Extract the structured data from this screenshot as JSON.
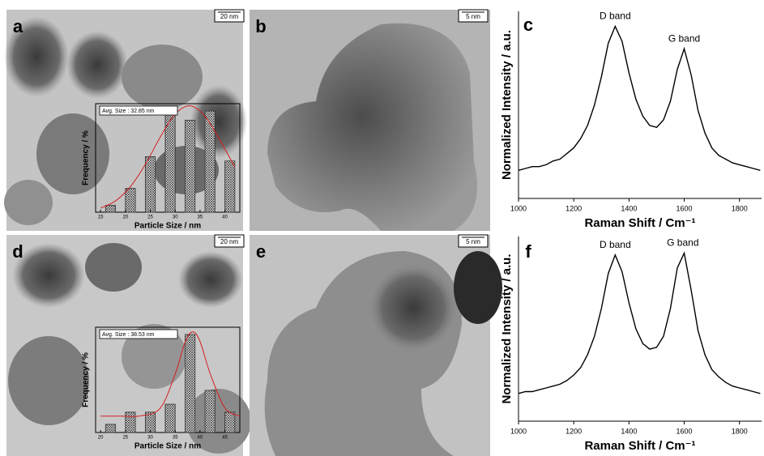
{
  "panels": [
    {
      "label": "a",
      "scale_bar": "20 nm"
    },
    {
      "label": "b",
      "scale_bar": "5 nm"
    },
    {
      "label": "c"
    },
    {
      "label": "d",
      "scale_bar": "20 nm"
    },
    {
      "label": "e",
      "scale_bar": "5 nm"
    },
    {
      "label": "f"
    }
  ],
  "chart_data": [
    {
      "type": "bar",
      "annotation": "Avg. Size : 32.85 nm",
      "x_label": "Particle Size / nm",
      "y_label": "Frequency / %",
      "x": [
        17,
        21,
        25,
        29,
        33,
        37,
        41
      ],
      "values": [
        1.6,
        5.5,
        12.8,
        23.3,
        21.2,
        23.3,
        11.8
      ],
      "color": "#333333",
      "xlim": [
        14,
        43
      ],
      "xticks": [
        15,
        20,
        25,
        30,
        35,
        40
      ],
      "ylim": [
        0,
        25
      ],
      "fit": {
        "color": "#d42020",
        "x": [
          15,
          18,
          21,
          24,
          27,
          30,
          33,
          36,
          39,
          42
        ],
        "values": [
          0.95,
          2.6,
          5.9,
          11.0,
          17.3,
          22.6,
          24.5,
          22.1,
          16.6,
          10.4
        ]
      }
    },
    {
      "type": "line",
      "x_label": "Raman Shift / Cm⁻¹",
      "y_label": "Normalized Intensity / a.u.",
      "color": "#000000",
      "x": [
        1000,
        1025,
        1050,
        1075,
        1100,
        1125,
        1150,
        1175,
        1200,
        1225,
        1250,
        1275,
        1300,
        1325,
        1350,
        1375,
        1400,
        1425,
        1450,
        1475,
        1500,
        1525,
        1550,
        1575,
        1600,
        1625,
        1650,
        1675,
        1700,
        1725,
        1750,
        1775,
        1800,
        1825,
        1850,
        1875
      ],
      "values": [
        0.15,
        0.16,
        0.17,
        0.17,
        0.18,
        0.2,
        0.21,
        0.24,
        0.27,
        0.32,
        0.39,
        0.5,
        0.65,
        0.83,
        0.92,
        0.84,
        0.67,
        0.53,
        0.44,
        0.39,
        0.38,
        0.42,
        0.52,
        0.69,
        0.8,
        0.66,
        0.47,
        0.35,
        0.27,
        0.23,
        0.21,
        0.19,
        0.18,
        0.17,
        0.16,
        0.15
      ],
      "xlim": [
        1000,
        1880
      ],
      "xticks": [
        1000,
        1200,
        1400,
        1600,
        1800
      ],
      "ylim": [
        0,
        1
      ],
      "annotations": [
        {
          "text": "D band",
          "x": 1350
        },
        {
          "text": "G band",
          "x": 1600
        }
      ]
    },
    {
      "type": "bar",
      "annotation": "Avg. Size : 38.53 nm",
      "x_label": "Particle Size / nm",
      "y_label": "Frequency / %",
      "x": [
        22,
        26,
        30,
        34,
        38,
        42,
        46
      ],
      "values": [
        3.5,
        8.7,
        8.7,
        12.1,
        41.9,
        18.0,
        8.7
      ],
      "color": "#333333",
      "xlim": [
        19,
        48
      ],
      "xticks": [
        20,
        25,
        30,
        35,
        40,
        45
      ],
      "ylim": [
        0,
        45
      ],
      "fit": {
        "color": "#d42020",
        "x": [
          20,
          24,
          28,
          32,
          35,
          37,
          38.5,
          40,
          42,
          45,
          48
        ],
        "values": [
          7,
          7,
          7.1,
          10.4,
          25,
          38.6,
          43,
          38.9,
          25.4,
          10.5,
          7
        ]
      }
    },
    {
      "type": "line",
      "x_label": "Raman Shift / Cm⁻¹",
      "y_label": "Normalized Intensity / a.u.",
      "color": "#000000",
      "x": [
        1000,
        1025,
        1050,
        1075,
        1100,
        1125,
        1150,
        1175,
        1200,
        1225,
        1250,
        1275,
        1300,
        1325,
        1350,
        1375,
        1400,
        1425,
        1450,
        1475,
        1500,
        1525,
        1550,
        1575,
        1600,
        1625,
        1650,
        1675,
        1700,
        1725,
        1750,
        1775,
        1800,
        1825,
        1850,
        1875
      ],
      "values": [
        0.15,
        0.16,
        0.16,
        0.17,
        0.18,
        0.19,
        0.2,
        0.22,
        0.25,
        0.29,
        0.36,
        0.46,
        0.61,
        0.8,
        0.9,
        0.81,
        0.64,
        0.5,
        0.42,
        0.39,
        0.4,
        0.46,
        0.61,
        0.83,
        0.91,
        0.71,
        0.49,
        0.36,
        0.28,
        0.24,
        0.21,
        0.19,
        0.18,
        0.17,
        0.16,
        0.15
      ],
      "xlim": [
        1000,
        1880
      ],
      "xticks": [
        1000,
        1200,
        1400,
        1600,
        1800
      ],
      "ylim": [
        0,
        1
      ],
      "annotations": [
        {
          "text": "D band",
          "x": 1350
        },
        {
          "text": "G band",
          "x": 1595
        }
      ]
    }
  ]
}
